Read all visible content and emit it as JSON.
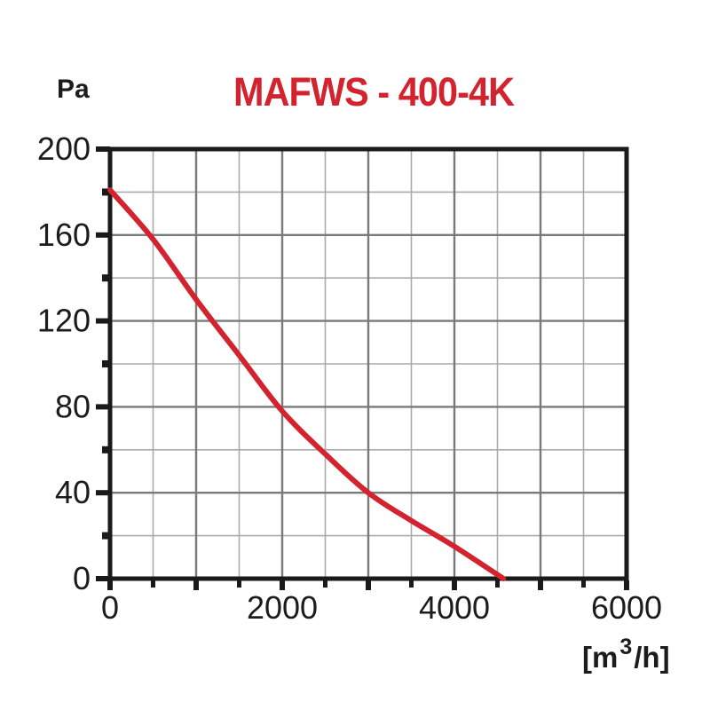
{
  "title": "MAFWS - 400-4K",
  "y_axis_unit": "Pa",
  "x_axis_unit": {
    "prefix": "[m",
    "sup": "3",
    "suffix": "/h]"
  },
  "colors": {
    "title_red": "#d2232e",
    "curve_red": "#d2232e",
    "axis_black": "#1a1a1a",
    "grid_major": "#7a7a7a",
    "grid_minor": "#aaaaaa",
    "label_text": "#1c1c1c",
    "background": "#ffffff"
  },
  "chart_data": {
    "type": "line",
    "title": "MAFWS - 400-4K",
    "xlabel": "[m3/h]",
    "ylabel": "Pa",
    "xlim": [
      0,
      6000
    ],
    "ylim": [
      0,
      200
    ],
    "grid": true,
    "x_major_step": 1000,
    "x_minor_step": 500,
    "y_major_step": 40,
    "y_minor_step": 20,
    "xticks": [
      0,
      2000,
      4000,
      6000
    ],
    "xtick_labels": [
      "0",
      "2000",
      "4000",
      "6000"
    ],
    "yticks": [
      0,
      40,
      80,
      120,
      160,
      200
    ],
    "ytick_labels": [
      "0",
      "40",
      "80",
      "120",
      "160",
      "200"
    ],
    "legend": "none",
    "series": [
      {
        "name": "pressure-flow curve",
        "color": "#d2232e",
        "points": [
          [
            0,
            181
          ],
          [
            500,
            158
          ],
          [
            1000,
            130
          ],
          [
            1500,
            104
          ],
          [
            2000,
            78
          ],
          [
            2500,
            58
          ],
          [
            3000,
            40
          ],
          [
            3500,
            27
          ],
          [
            4000,
            15
          ],
          [
            4570,
            0
          ]
        ]
      }
    ]
  }
}
